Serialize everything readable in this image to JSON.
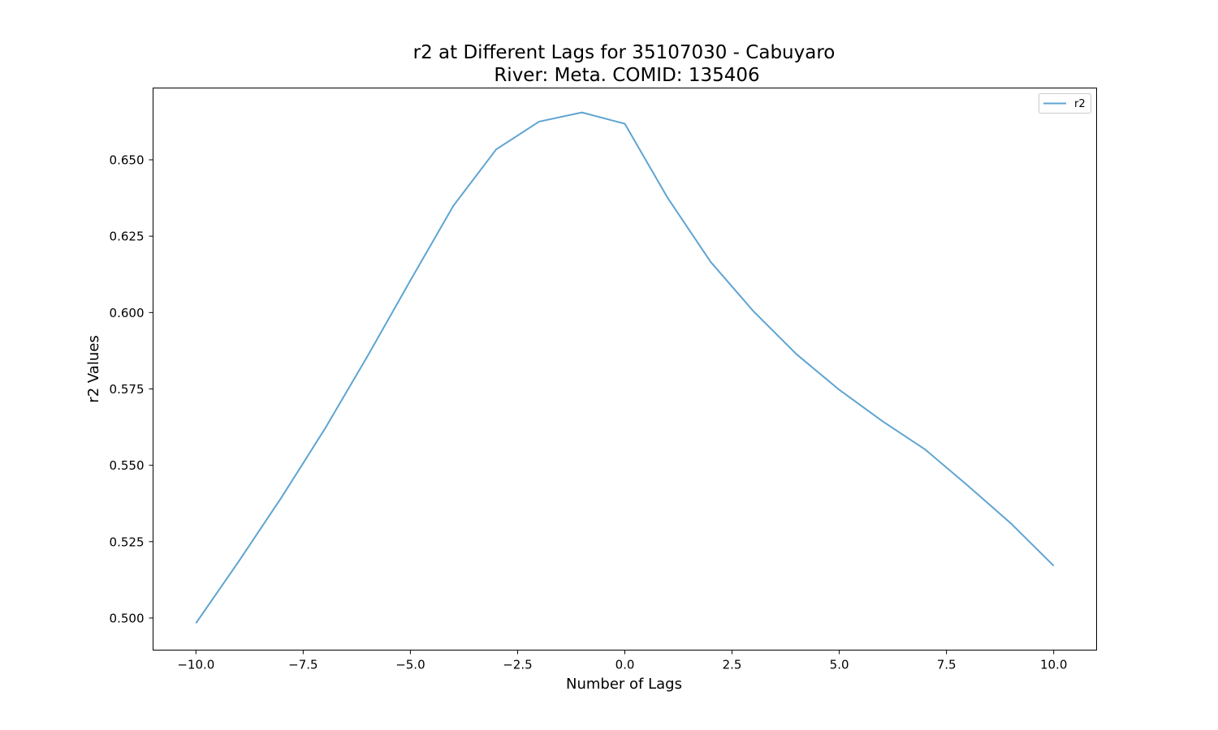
{
  "chart_data": {
    "type": "line",
    "title_line1": "r2 at Different Lags for 35107030 - Cabuyaro",
    "title_line2": "River: Meta. COMID: 135406",
    "xlabel": "Number of Lags",
    "ylabel": "r2 Values",
    "xlim": [
      -11,
      11
    ],
    "ylim": [
      0.4895,
      0.6735
    ],
    "x_ticks": [
      -10.0,
      -7.5,
      -5.0,
      -2.5,
      0.0,
      2.5,
      5.0,
      7.5,
      10.0
    ],
    "x_tick_labels": [
      "−10.0",
      "−7.5",
      "−5.0",
      "−2.5",
      "0.0",
      "2.5",
      "5.0",
      "7.5",
      "10.0"
    ],
    "y_ticks": [
      0.5,
      0.525,
      0.55,
      0.575,
      0.6,
      0.625,
      0.65
    ],
    "y_tick_labels": [
      "0.500",
      "0.525",
      "0.550",
      "0.575",
      "0.600",
      "0.625",
      "0.650"
    ],
    "grid": false,
    "legend_position": "top-right",
    "series": [
      {
        "name": "r2",
        "color": "#5ea4d2",
        "x": [
          -10,
          -9,
          -8,
          -7,
          -6,
          -5,
          -4,
          -3,
          -2,
          -1,
          0,
          1,
          2,
          3,
          4,
          5,
          6,
          7,
          8,
          9,
          10
        ],
        "y": [
          0.4983,
          0.5186,
          0.5396,
          0.5618,
          0.5857,
          0.6105,
          0.6349,
          0.6534,
          0.6625,
          0.6655,
          0.6618,
          0.6375,
          0.6166,
          0.6004,
          0.5864,
          0.5747,
          0.5645,
          0.5552,
          0.5433,
          0.531,
          0.5171
        ]
      }
    ]
  }
}
